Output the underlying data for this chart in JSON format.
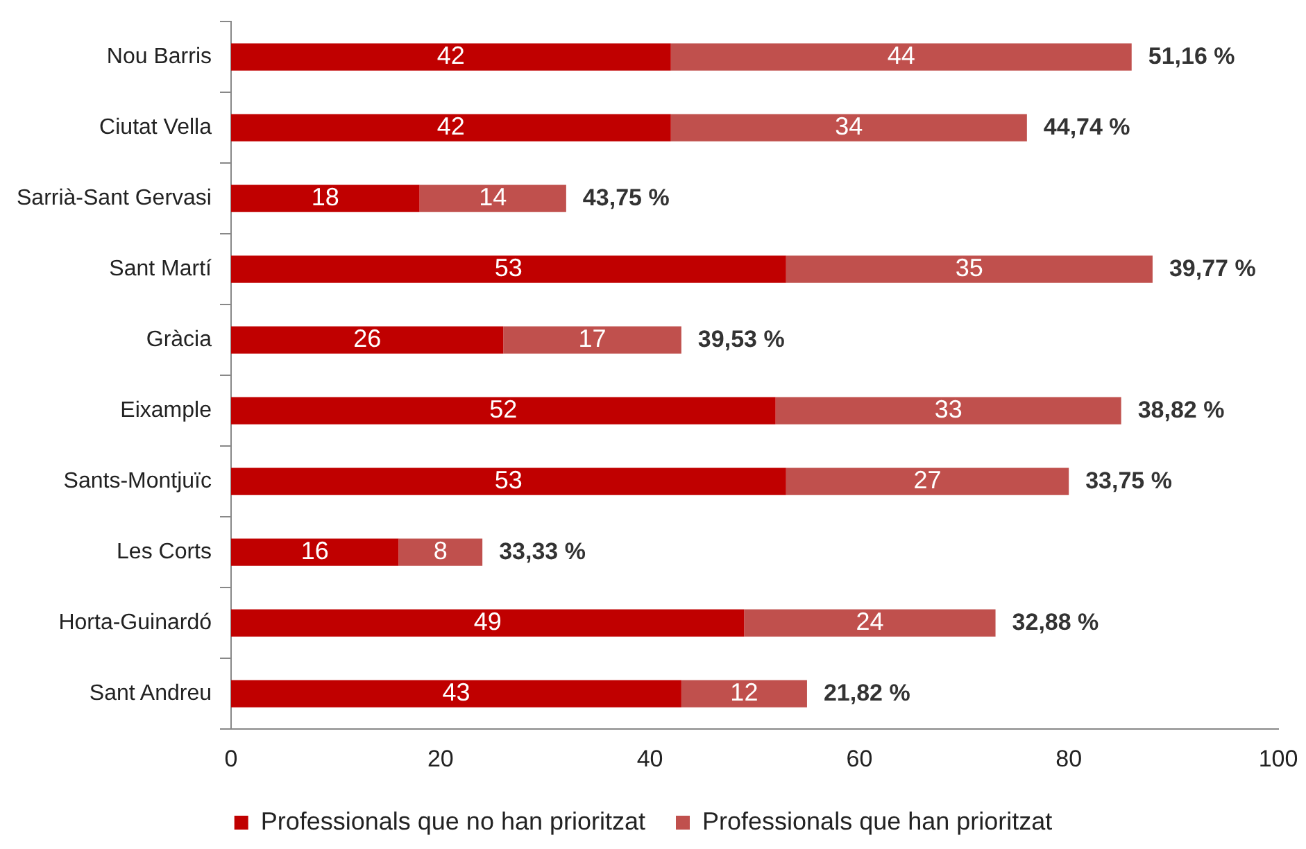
{
  "chart_data": {
    "type": "bar",
    "orientation": "horizontal",
    "stacked": true,
    "categories": [
      "Nou Barris",
      "Ciutat Vella",
      "Sarrià-Sant Gervasi",
      "Sant Martí",
      "Gràcia",
      "Eixample",
      "Sants-Montjuïc",
      "Les Corts",
      "Horta-Guinardó",
      "Sant Andreu"
    ],
    "series": [
      {
        "name": "Professionals que no han prioritzat",
        "color": "#c00000",
        "values": [
          42,
          42,
          18,
          53,
          26,
          52,
          53,
          16,
          49,
          43
        ]
      },
      {
        "name": "Professionals que han prioritzat",
        "color": "#c0504d",
        "values": [
          44,
          34,
          14,
          35,
          17,
          33,
          27,
          8,
          24,
          12
        ]
      }
    ],
    "annotations": [
      {
        "text": "51,16 %",
        "x": 86,
        "y": "Nou Barris"
      },
      {
        "text": "44,74 %",
        "x": 76,
        "y": "Ciutat Vella"
      },
      {
        "text": "43,75 %",
        "x": 32,
        "y": "Sarrià-Sant Gervasi"
      },
      {
        "text": "39,77 %",
        "x": 88,
        "y": "Sant Martí"
      },
      {
        "text": "39,53 %",
        "x": 43,
        "y": "Gràcia"
      },
      {
        "text": "38,82 %",
        "x": 85,
        "y": "Eixample"
      },
      {
        "text": "33,75 %",
        "x": 80,
        "y": "Sants-Montjuïc"
      },
      {
        "text": "33,33 %",
        "x": 24,
        "y": "Les Corts"
      },
      {
        "text": "32,88 %",
        "x": 73,
        "y": "Horta-Guinardó"
      },
      {
        "text": "21,82 %",
        "x": 55,
        "y": "Sant Andreu"
      }
    ],
    "data_labels": true,
    "xlim": [
      0,
      100
    ],
    "xticks": [
      0,
      20,
      40,
      60,
      80,
      100
    ],
    "grid": false,
    "legend": "bottom"
  }
}
